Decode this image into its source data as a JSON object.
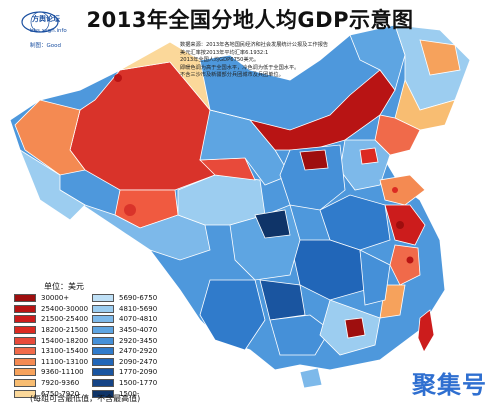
{
  "title": "2013年全国分地人均GDP示意图",
  "logo": {
    "name": "方舆论坛",
    "site": "bbs.xsgh.info",
    "maker": "制图：Good"
  },
  "notes": [
    "数据来源：2013年各地国民经济和社会发展统计公报及工作报告",
    "美元汇率按2013年平均汇率6.1932:1",
    "2013年全国人均GDP6750美元。",
    "即暖色调为高于全国水平，冷色调为低于全国水平。",
    "不含三沙市及新疆部分兵团城市及兵团单位。"
  ],
  "legend": {
    "unit": "单位：美元",
    "left": [
      {
        "label": "30000+",
        "color": "#9e0e0e"
      },
      {
        "label": "25400-30000",
        "color": "#b81414"
      },
      {
        "label": "21500-25400",
        "color": "#cc1c1c"
      },
      {
        "label": "18200-21500",
        "color": "#dc2a22"
      },
      {
        "label": "15400-18200",
        "color": "#e84a3a"
      },
      {
        "label": "13100-15400",
        "color": "#f06a4a"
      },
      {
        "label": "11100-13100",
        "color": "#f48a52"
      },
      {
        "label": "9360-11100",
        "color": "#f6a25c"
      },
      {
        "label": "7920-9360",
        "color": "#f8bd72"
      },
      {
        "label": "6750-7920",
        "color": "#fbd89a"
      }
    ],
    "right": [
      {
        "label": "5690-6750",
        "color": "#bfe0f6"
      },
      {
        "label": "4810-5690",
        "color": "#9ccdf0"
      },
      {
        "label": "4070-4810",
        "color": "#7db9ea"
      },
      {
        "label": "3450-4070",
        "color": "#5ea5e2"
      },
      {
        "label": "2920-3450",
        "color": "#4590d8"
      },
      {
        "label": "2470-2920",
        "color": "#307bcb"
      },
      {
        "label": "2090-2470",
        "color": "#2166b8"
      },
      {
        "label": "1770-2090",
        "color": "#1a55a0"
      },
      {
        "label": "1500-1770",
        "color": "#154486"
      },
      {
        "label": "1500-",
        "color": "#0f3468"
      }
    ],
    "note": "(每组可含最低值，不含最高值)"
  },
  "watermark": "聚集号",
  "colors": {
    "ocean": "#ffffff",
    "neighbor": "#f3f3f3",
    "border": "#ffffff"
  }
}
